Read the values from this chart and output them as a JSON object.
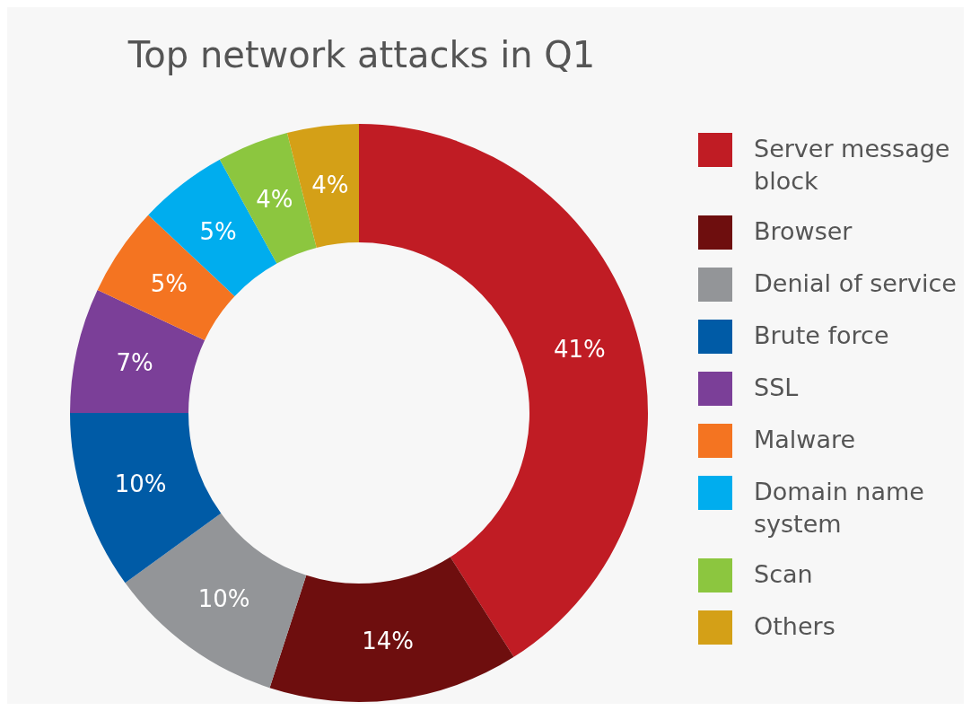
{
  "chart_data": {
    "type": "donut",
    "title": "Top network attacks in Q1",
    "categories": [
      "Server message block",
      "Browser",
      "Denial of service",
      "Brute force",
      "SSL",
      "Malware",
      "Domain name system",
      "Scan",
      "Others"
    ],
    "values": [
      41,
      14,
      10,
      10,
      7,
      5,
      5,
      4,
      4
    ],
    "colors": [
      "#c01c24",
      "#6e0e0e",
      "#939598",
      "#005ba6",
      "#7b3f98",
      "#f47421",
      "#00adee",
      "#8cc63f",
      "#d4a017"
    ],
    "value_labels": [
      "41%",
      "14%",
      "10%",
      "10%",
      "7%",
      "5%",
      "5%",
      "4%",
      "4%"
    ],
    "legend": "right"
  }
}
